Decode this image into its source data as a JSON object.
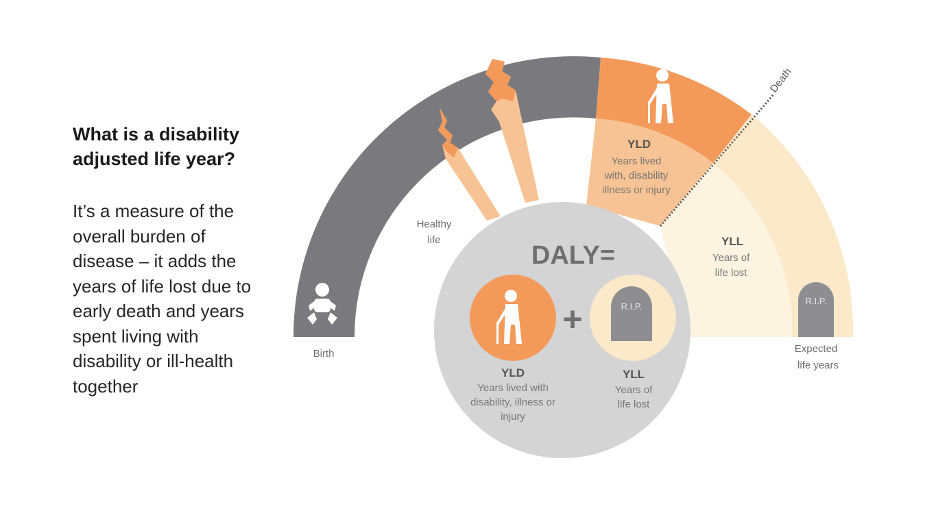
{
  "heading": "What is a disability adjusted life year?",
  "description": "It’s a measure of the overall burden of disease – it adds the years of life lost due to early death and years spent living with disability or ill-health together",
  "arc": {
    "birth": "Birth",
    "healthy_life": [
      "Healthy",
      "life"
    ],
    "death": "Death",
    "yld_title": "YLD",
    "yld_lines": [
      "Years lived",
      "with, disability",
      "illness or injury"
    ],
    "yll_title": "YLL",
    "yll_lines": [
      "Years of",
      "life lost"
    ],
    "expected": [
      "Expected",
      "life years"
    ],
    "tombstone": "R.I.P."
  },
  "formula": {
    "title": "DALY=",
    "plus": "+",
    "yld_title": "YLD",
    "yld_lines": [
      "Years lived with",
      "disability, illness or",
      "injury"
    ],
    "yll_title": "YLL",
    "yll_lines": [
      "Years of",
      "life lost"
    ],
    "tombstone": "R.I.P."
  },
  "colors": {
    "grey_arc": "#7a7a7e",
    "orange": "#f39a5b",
    "light_orange": "#f7c394",
    "cream": "#fbe9c9",
    "formula_circle": "#d4d4d4",
    "tombstone": "#8e8e92",
    "text_grey": "#6d6d6d"
  },
  "icons": [
    "baby-icon",
    "elderly-person-icon",
    "tombstone-icon"
  ]
}
